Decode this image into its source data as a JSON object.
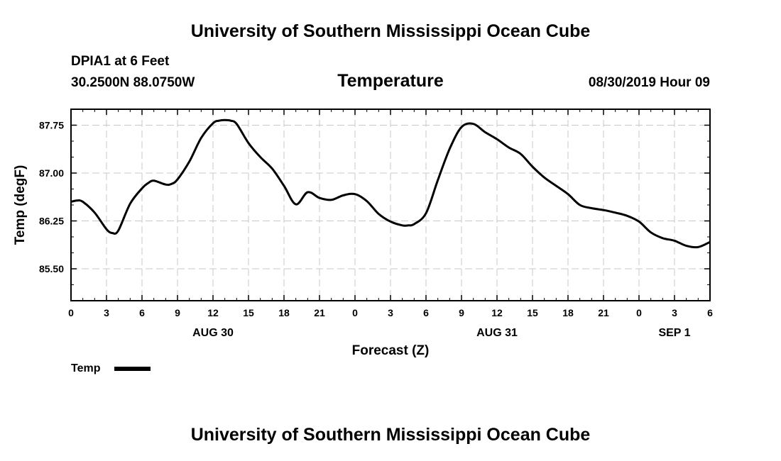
{
  "header": {
    "title": "University of Southern Mississippi Ocean Cube",
    "station": "DPIA1 at 6 Feet",
    "coords": "30.2500N 88.0750W",
    "variable": "Temperature",
    "datetime": "08/30/2019 Hour 09"
  },
  "footer": {
    "title": "University of Southern Mississippi Ocean Cube"
  },
  "chart_data": {
    "type": "line",
    "title": "Temperature",
    "xlabel": "Forecast (Z)",
    "ylabel": "Temp (degF)",
    "xlim": [
      0,
      54
    ],
    "ylim": [
      85.0,
      88.0
    ],
    "grid": true,
    "x_tick_values": [
      0,
      3,
      6,
      9,
      12,
      15,
      18,
      21,
      24,
      27,
      30,
      33,
      36,
      39,
      42,
      45,
      48,
      51,
      54
    ],
    "x_tick_labels": [
      "0",
      "3",
      "6",
      "9",
      "12",
      "15",
      "18",
      "21",
      "0",
      "3",
      "6",
      "9",
      "12",
      "15",
      "18",
      "21",
      "0",
      "3",
      "6"
    ],
    "y_ticks": [
      85.5,
      86.25,
      87.0,
      87.75
    ],
    "y_tick_labels": [
      "85.50",
      "86.25",
      "87.00",
      "87.75"
    ],
    "date_labels": [
      {
        "x": 12,
        "label": "AUG 30"
      },
      {
        "x": 36,
        "label": "AUG 31"
      },
      {
        "x": 51,
        "label": "SEP 1"
      }
    ],
    "legend": {
      "position": "bottom-left",
      "label": "Temp"
    },
    "series": [
      {
        "name": "Temp",
        "color": "#000000",
        "x": [
          0,
          0.5,
          1,
          2,
          3,
          3.5,
          4,
          5,
          6,
          6.5,
          7,
          8,
          8.5,
          9,
          10,
          11,
          12,
          12.5,
          13,
          13.5,
          14,
          15,
          16,
          17,
          18,
          19,
          20,
          21,
          22,
          23,
          24,
          25,
          26,
          27,
          28,
          28.5,
          29,
          30,
          31,
          32,
          33,
          34,
          35,
          36,
          37,
          38,
          39,
          40,
          41,
          42,
          43,
          44,
          45,
          46,
          47,
          48,
          49,
          50,
          51,
          52,
          53,
          54
        ],
        "values": [
          86.55,
          86.57,
          86.55,
          86.38,
          86.12,
          86.06,
          86.1,
          86.52,
          86.76,
          86.84,
          86.88,
          86.82,
          86.83,
          86.9,
          87.18,
          87.55,
          87.78,
          87.82,
          87.83,
          87.82,
          87.77,
          87.47,
          87.25,
          87.07,
          86.8,
          86.51,
          86.7,
          86.61,
          86.58,
          86.65,
          86.67,
          86.56,
          86.36,
          86.24,
          86.18,
          86.18,
          86.2,
          86.37,
          86.89,
          87.38,
          87.72,
          87.77,
          87.64,
          87.53,
          87.4,
          87.3,
          87.1,
          86.93,
          86.8,
          86.67,
          86.5,
          86.45,
          86.42,
          86.38,
          86.33,
          86.24,
          86.07,
          85.98,
          85.94,
          85.86,
          85.84,
          85.92
        ]
      }
    ]
  }
}
